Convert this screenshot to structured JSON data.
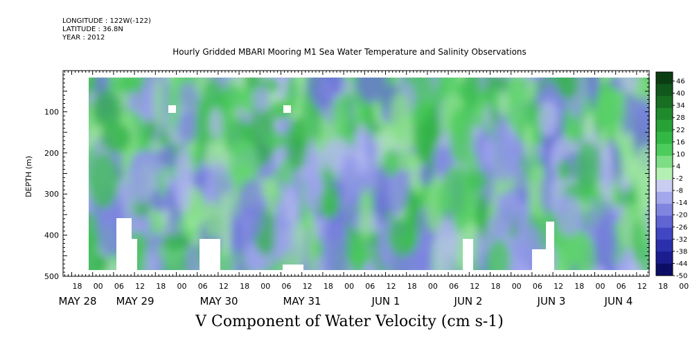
{
  "header": {
    "longitude": "LONGITUDE : 122W(-122)",
    "latitude": "LATITUDE : 36.8N",
    "year": "YEAR : 2012",
    "title": "Hourly Gridded MBARI Mooring M1 Sea Water Temperature and Salinity Observations"
  },
  "chart_data": {
    "type": "heatmap",
    "title": "Hourly Gridded MBARI Mooring M1 Sea Water Temperature and Salinity Observations",
    "xlabel": "V Component of Water Velocity (cm s-1)",
    "ylabel": "DEPTH (m)",
    "ylim": [
      500,
      0
    ],
    "y_ticks": [
      100,
      200,
      300,
      400,
      500
    ],
    "x_hour_ticks": [
      "18",
      "00",
      "06",
      "12",
      "18",
      "00",
      "06",
      "12",
      "18",
      "00",
      "06",
      "12",
      "18",
      "00",
      "06",
      "12",
      "18",
      "00",
      "06",
      "12",
      "18",
      "00",
      "06",
      "12",
      "18",
      "00",
      "06",
      "12",
      "18",
      "00",
      "06",
      "12"
    ],
    "date_labels": [
      "MAY 28",
      "MAY 29",
      "MAY 30",
      "MAY 31",
      "JUN  1",
      "JUN  2",
      "JUN  3",
      "JUN  4"
    ],
    "colorbar_labels": [
      "46",
      "40",
      "34",
      "28",
      "22",
      "16",
      "10",
      "4",
      "-2",
      "-8",
      "-14",
      "-20",
      "-26",
      "-32",
      "-38",
      "-44",
      "-50"
    ],
    "colorbar_colors": [
      "#0b3d12",
      "#11561b",
      "#186e23",
      "#1f8a2c",
      "#28a236",
      "#33b845",
      "#4ccc5c",
      "#7ede85",
      "#b4f0b4",
      "#c9cdf2",
      "#a3a8ec",
      "#8086e0",
      "#5f66d3",
      "#4147c2",
      "#2a2fab",
      "#1a1d8e",
      "#0c0e66"
    ],
    "depth_profile_rows": [
      {
        "depth": "0-100",
        "character": "mixed green and blue"
      },
      {
        "depth": "100-200",
        "character": "mostly green"
      },
      {
        "depth": "200-300",
        "character": "light blue and pale green"
      },
      {
        "depth": "300-500",
        "character": "blue with green patches"
      }
    ]
  }
}
